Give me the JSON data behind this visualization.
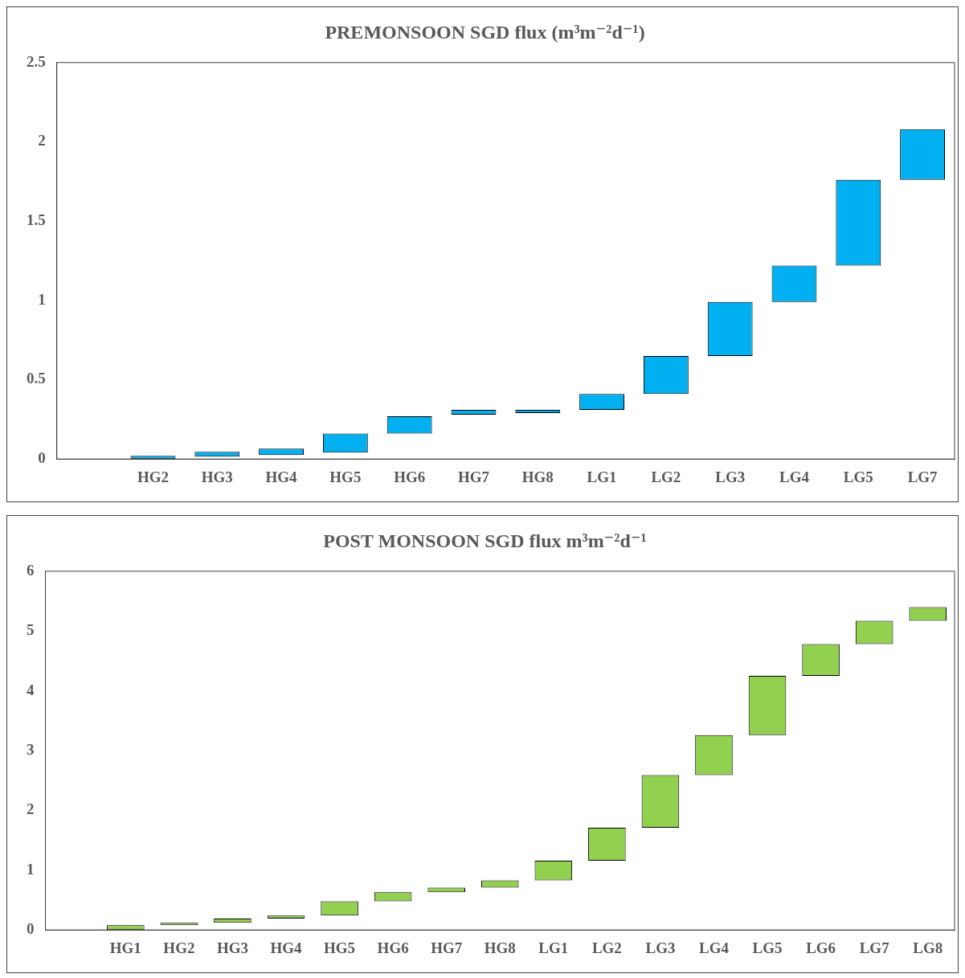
{
  "chart_data": [
    {
      "type": "bar",
      "title": "PREMONSOON SGD flux (m³m⁻²d⁻¹)",
      "categories": [
        null,
        "HG2",
        "HG3",
        "HG4",
        "HG5",
        "HG6",
        "HG7",
        "HG8",
        "LG1",
        "LG2",
        "LG3",
        "LG4",
        "LG5",
        "LG7"
      ],
      "values": [
        null,
        0.02,
        0.03,
        0.04,
        0.12,
        0.11,
        0.03,
        0.02,
        0.1,
        0.24,
        0.34,
        0.23,
        0.54,
        0.32
      ],
      "base": [
        null,
        0,
        0.015,
        0.025,
        0.04,
        0.16,
        0.28,
        0.29,
        0.31,
        0.41,
        0.65,
        0.99,
        1.22,
        1.76
      ],
      "color": "#00b0f0",
      "ylim": [
        0,
        2.5
      ],
      "yticks": [
        0,
        0.5,
        1,
        1.5,
        2,
        2.5
      ],
      "grid": false,
      "legend": false
    },
    {
      "type": "bar",
      "title": "POST MONSOON SGD flux m³m⁻²d⁻¹",
      "categories": [
        null,
        "HG1",
        "HG2",
        "HG3",
        "HG4",
        "HG5",
        "HG6",
        "HG7",
        "HG8",
        "LG1",
        "LG2",
        "LG3",
        "LG4",
        "LG5",
        "LG6",
        "LG7",
        "LG8"
      ],
      "values": [
        null,
        0.08,
        0.04,
        0.07,
        0.05,
        0.24,
        0.15,
        0.08,
        0.12,
        0.33,
        0.55,
        0.88,
        0.67,
        0.99,
        0.53,
        0.39,
        0.23
      ],
      "base": [
        null,
        0,
        0.08,
        0.12,
        0.19,
        0.24,
        0.48,
        0.63,
        0.71,
        0.83,
        1.16,
        1.71,
        2.59,
        3.26,
        4.25,
        4.78,
        5.17
      ],
      "color": "#92d050",
      "ylim": [
        0,
        6
      ],
      "yticks": [
        0,
        1,
        2,
        3,
        4,
        5,
        6
      ],
      "grid": false,
      "legend": false
    }
  ]
}
